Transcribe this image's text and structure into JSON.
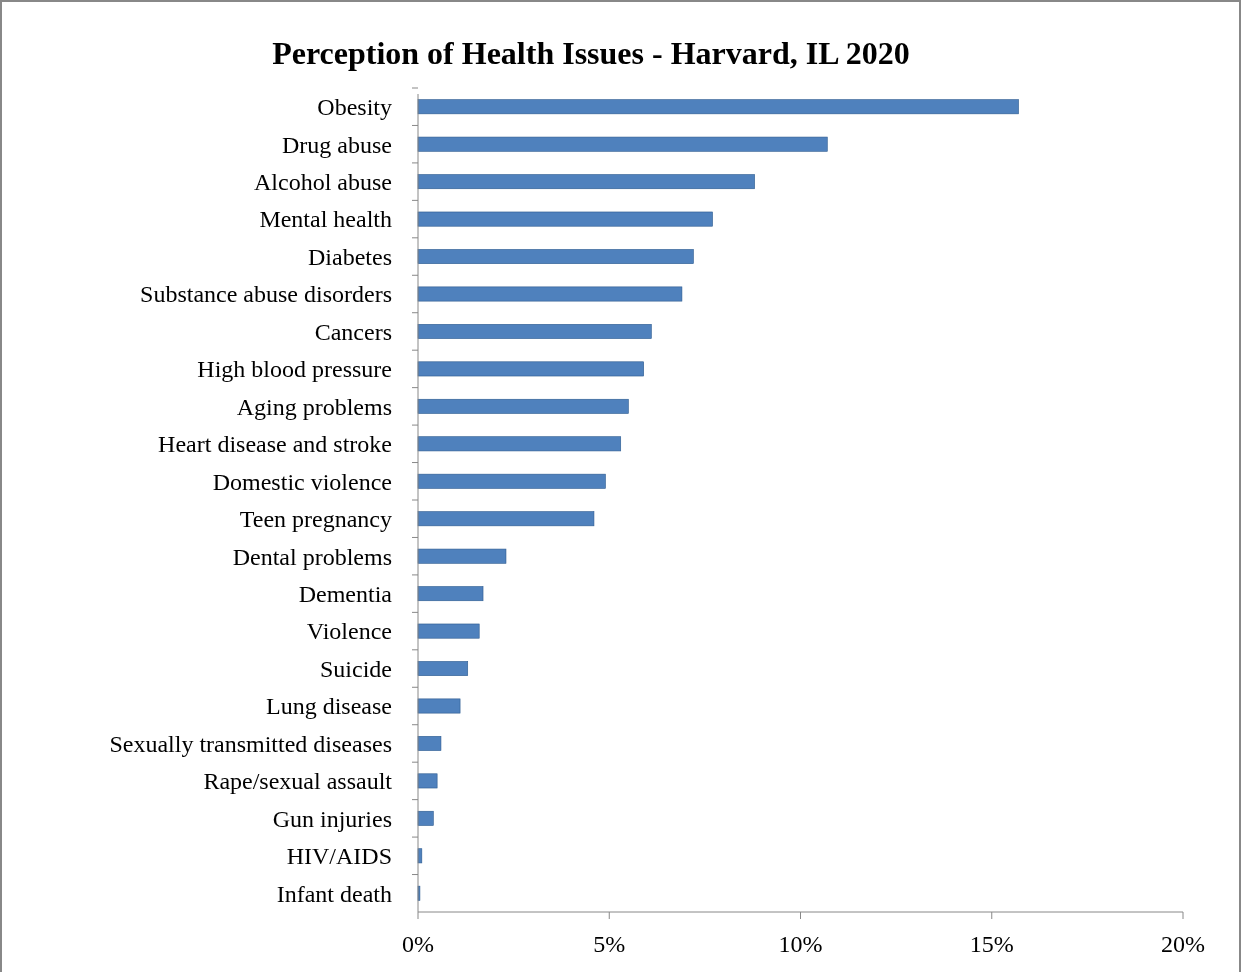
{
  "chart_data": {
    "type": "bar",
    "orientation": "horizontal",
    "title": "Perception of Health Issues - Harvard, IL 2020",
    "categories": [
      "Obesity",
      "Drug abuse",
      "Alcohol abuse",
      "Mental health",
      "Diabetes",
      "Substance abuse disorders",
      "Cancers",
      "High blood pressure",
      "Aging problems",
      "Heart disease and stroke",
      "Domestic violence",
      "Teen pregnancy",
      "Dental problems",
      "Dementia",
      "Violence",
      "Suicide",
      "Lung disease",
      "Sexually transmitted diseases",
      "Rape/sexual assault",
      "Gun injuries",
      "HIV/AIDS",
      "Infant death"
    ],
    "values": [
      15.7,
      10.7,
      8.8,
      7.7,
      7.2,
      6.9,
      6.1,
      5.9,
      5.5,
      5.3,
      4.9,
      4.6,
      2.3,
      1.7,
      1.6,
      1.3,
      1.1,
      0.6,
      0.5,
      0.4,
      0.1,
      0.05
    ],
    "color": "#4f81bd",
    "xlim": [
      0,
      20
    ],
    "xticks": [
      {
        "value": 0,
        "label": "0%"
      },
      {
        "value": 5,
        "label": "5%"
      },
      {
        "value": 10,
        "label": "10%"
      },
      {
        "value": 15,
        "label": "15%"
      },
      {
        "value": 20,
        "label": "20%"
      }
    ],
    "grid": false
  }
}
